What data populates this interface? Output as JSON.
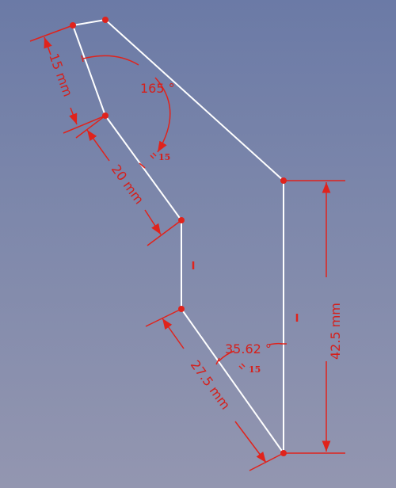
{
  "sketch": {
    "colors": {
      "geometry": "#ffffff",
      "constraint": "#e0231c",
      "background_top": "#6b7aa6",
      "background_bottom": "#9396b0"
    },
    "dimensions": {
      "length_top_left": "15 mm",
      "length_middle_left": "20 mm",
      "length_lower_left": "27.5 mm",
      "length_right_vertical": "42.5 mm",
      "angle_upper": "165 °",
      "angle_lower": "35.62 °"
    },
    "constraint_labels": {
      "upper_equal": "15",
      "lower_equal": "15",
      "vertical_mid": "I",
      "vertical_right": "I"
    }
  }
}
